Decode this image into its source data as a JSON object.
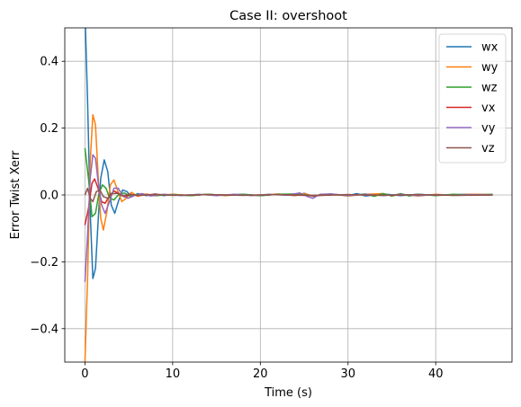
{
  "chart_data": {
    "type": "line",
    "title": "Case II: overshoot",
    "xlabel": "Time (s)",
    "ylabel": "Error Twist Xerr",
    "xlim": [
      -2.3,
      48.7
    ],
    "ylim": [
      -0.5,
      0.5
    ],
    "xticks": [
      0,
      10,
      20,
      30,
      40
    ],
    "xtick_labels": [
      "0",
      "10",
      "20",
      "30",
      "40"
    ],
    "yticks": [
      -0.4,
      -0.2,
      0.0,
      0.2,
      0.4
    ],
    "ytick_labels": [
      "−0.4",
      "−0.2",
      "0.0",
      "0.2",
      "0.4"
    ],
    "grid": true,
    "legend_position": "upper right",
    "t_end": 46.5,
    "series": [
      {
        "name": "wx",
        "color": "#1f77b4",
        "points": [
          [
            0,
            0.55
          ],
          [
            0.3,
            0.28
          ],
          [
            0.6,
            -0.05
          ],
          [
            0.9,
            -0.25
          ],
          [
            1.2,
            -0.22
          ],
          [
            1.5,
            -0.08
          ],
          [
            1.8,
            0.05
          ],
          [
            2.2,
            0.105
          ],
          [
            2.6,
            0.07
          ],
          [
            3.0,
            -0.03
          ],
          [
            3.4,
            -0.055
          ],
          [
            3.8,
            -0.02
          ],
          [
            4.3,
            0.015
          ],
          [
            4.8,
            0.01
          ],
          [
            5.3,
            -0.006
          ],
          [
            6,
            0.004
          ],
          [
            7,
            -0.002
          ],
          [
            8,
            0.003
          ],
          [
            9,
            -0.002
          ],
          [
            10,
            0.002
          ],
          [
            12,
            -0.002
          ],
          [
            14,
            0.002
          ],
          [
            16,
            -0.001
          ],
          [
            18,
            0.002
          ],
          [
            20,
            -0.002
          ],
          [
            22,
            0.002
          ],
          [
            24,
            -0.002
          ],
          [
            25,
            0.005
          ],
          [
            26,
            -0.004
          ],
          [
            28,
            0.003
          ],
          [
            30,
            -0.002
          ],
          [
            31,
            0.004
          ],
          [
            32,
            -0.003
          ],
          [
            34,
            0.003
          ],
          [
            36,
            -0.002
          ],
          [
            38,
            0.002
          ],
          [
            40,
            -0.001
          ],
          [
            42,
            0.001
          ],
          [
            44,
            0.002
          ],
          [
            46.5,
            0.001
          ]
        ]
      },
      {
        "name": "wy",
        "color": "#ff7f0e",
        "points": [
          [
            0,
            -0.5
          ],
          [
            0.3,
            -0.25
          ],
          [
            0.6,
            0.1
          ],
          [
            0.9,
            0.24
          ],
          [
            1.2,
            0.21
          ],
          [
            1.5,
            0.06
          ],
          [
            1.8,
            -0.07
          ],
          [
            2.1,
            -0.105
          ],
          [
            2.5,
            -0.05
          ],
          [
            2.9,
            0.03
          ],
          [
            3.3,
            0.045
          ],
          [
            3.7,
            0.015
          ],
          [
            4.2,
            -0.02
          ],
          [
            4.7,
            -0.01
          ],
          [
            5.3,
            0.008
          ],
          [
            6,
            -0.004
          ],
          [
            7,
            0.003
          ],
          [
            8,
            -0.002
          ],
          [
            10,
            0.002
          ],
          [
            12,
            -0.002
          ],
          [
            14,
            0.002
          ],
          [
            16,
            -0.002
          ],
          [
            18,
            0.001
          ],
          [
            20,
            -0.002
          ],
          [
            22,
            0.003
          ],
          [
            24,
            -0.002
          ],
          [
            25,
            0.004
          ],
          [
            26,
            -0.003
          ],
          [
            28,
            0.002
          ],
          [
            30,
            -0.003
          ],
          [
            32,
            0.002
          ],
          [
            34,
            0.004
          ],
          [
            35,
            -0.003
          ],
          [
            36,
            0.002
          ],
          [
            38,
            -0.003
          ],
          [
            40,
            0.002
          ],
          [
            42,
            -0.001
          ],
          [
            44,
            0.002
          ],
          [
            46.5,
            0.001
          ]
        ]
      },
      {
        "name": "wz",
        "color": "#2ca02c",
        "points": [
          [
            0,
            0.14
          ],
          [
            0.4,
            0.05
          ],
          [
            0.8,
            -0.065
          ],
          [
            1.2,
            -0.055
          ],
          [
            1.6,
            0.005
          ],
          [
            2.0,
            0.03
          ],
          [
            2.4,
            0.02
          ],
          [
            2.8,
            -0.008
          ],
          [
            3.3,
            -0.015
          ],
          [
            3.8,
            0.0
          ],
          [
            4.5,
            0.006
          ],
          [
            5.2,
            -0.004
          ],
          [
            6,
            0.002
          ],
          [
            8,
            -0.002
          ],
          [
            10,
            0.001
          ],
          [
            12,
            -0.002
          ],
          [
            14,
            0.002
          ],
          [
            16,
            -0.001
          ],
          [
            18,
            0.002
          ],
          [
            20,
            -0.002
          ],
          [
            22,
            0.002
          ],
          [
            24,
            0.003
          ],
          [
            26,
            -0.002
          ],
          [
            28,
            0.002
          ],
          [
            30,
            -0.002
          ],
          [
            32,
            0.003
          ],
          [
            33,
            -0.004
          ],
          [
            34,
            0.004
          ],
          [
            35,
            -0.003
          ],
          [
            36,
            0.004
          ],
          [
            37,
            -0.003
          ],
          [
            38,
            0.002
          ],
          [
            40,
            -0.002
          ],
          [
            42,
            0.002
          ],
          [
            44,
            -0.001
          ],
          [
            46.5,
            0.002
          ]
        ]
      },
      {
        "name": "vx",
        "color": "#d62728",
        "points": [
          [
            0,
            -0.09
          ],
          [
            0.4,
            -0.04
          ],
          [
            0.8,
            0.035
          ],
          [
            1.1,
            0.048
          ],
          [
            1.5,
            0.02
          ],
          [
            1.9,
            -0.02
          ],
          [
            2.3,
            -0.025
          ],
          [
            2.8,
            -0.002
          ],
          [
            3.3,
            0.012
          ],
          [
            3.9,
            0.004
          ],
          [
            4.5,
            -0.006
          ],
          [
            5.2,
            0.002
          ],
          [
            6,
            -0.002
          ],
          [
            8,
            0.002
          ],
          [
            10,
            -0.001
          ],
          [
            14,
            0.001
          ],
          [
            18,
            -0.001
          ],
          [
            22,
            0.001
          ],
          [
            26,
            -0.002
          ],
          [
            30,
            0.001
          ],
          [
            34,
            -0.001
          ],
          [
            38,
            0.001
          ],
          [
            42,
            -0.001
          ],
          [
            46.5,
            0.0
          ]
        ]
      },
      {
        "name": "vy",
        "color": "#9467bd",
        "points": [
          [
            0,
            -0.26
          ],
          [
            0.3,
            -0.12
          ],
          [
            0.6,
            0.05
          ],
          [
            0.9,
            0.12
          ],
          [
            1.2,
            0.11
          ],
          [
            1.5,
            0.04
          ],
          [
            1.9,
            -0.03
          ],
          [
            2.3,
            -0.055
          ],
          [
            2.8,
            -0.02
          ],
          [
            3.3,
            0.02
          ],
          [
            3.8,
            0.02
          ],
          [
            4.3,
            -0.002
          ],
          [
            4.9,
            -0.01
          ],
          [
            5.6,
            -0.002
          ],
          [
            6.5,
            0.004
          ],
          [
            7.5,
            -0.003
          ],
          [
            9,
            0.002
          ],
          [
            11,
            -0.002
          ],
          [
            13,
            0.002
          ],
          [
            15,
            -0.002
          ],
          [
            17,
            0.002
          ],
          [
            19,
            -0.002
          ],
          [
            21,
            0.002
          ],
          [
            23,
            -0.001
          ],
          [
            24.5,
            0.006
          ],
          [
            25.3,
            -0.004
          ],
          [
            26,
            -0.01
          ],
          [
            26.8,
            0.002
          ],
          [
            28,
            0.003
          ],
          [
            30,
            -0.002
          ],
          [
            32,
            0.002
          ],
          [
            34,
            -0.002
          ],
          [
            36,
            0.002
          ],
          [
            38,
            -0.002
          ],
          [
            40,
            0.001
          ],
          [
            42,
            -0.001
          ],
          [
            44,
            0.001
          ],
          [
            46.5,
            0.0
          ]
        ]
      },
      {
        "name": "vz",
        "color": "#8c564b",
        "points": [
          [
            0,
            0.0
          ],
          [
            0.3,
            0.02
          ],
          [
            0.6,
            -0.01
          ],
          [
            0.9,
            -0.02
          ],
          [
            1.3,
            0.01
          ],
          [
            1.7,
            0.015
          ],
          [
            2.1,
            -0.005
          ],
          [
            2.6,
            -0.01
          ],
          [
            3.1,
            0.004
          ],
          [
            3.7,
            0.005
          ],
          [
            4.3,
            -0.003
          ],
          [
            5,
            0.002
          ],
          [
            6,
            -0.001
          ],
          [
            8,
            0.001
          ],
          [
            10,
            -0.001
          ],
          [
            14,
            0.001
          ],
          [
            18,
            -0.001
          ],
          [
            22,
            0.001
          ],
          [
            26,
            -0.001
          ],
          [
            30,
            0.001
          ],
          [
            34,
            -0.001
          ],
          [
            38,
            0.001
          ],
          [
            42,
            -0.001
          ],
          [
            46.5,
            0.0
          ]
        ]
      }
    ]
  }
}
